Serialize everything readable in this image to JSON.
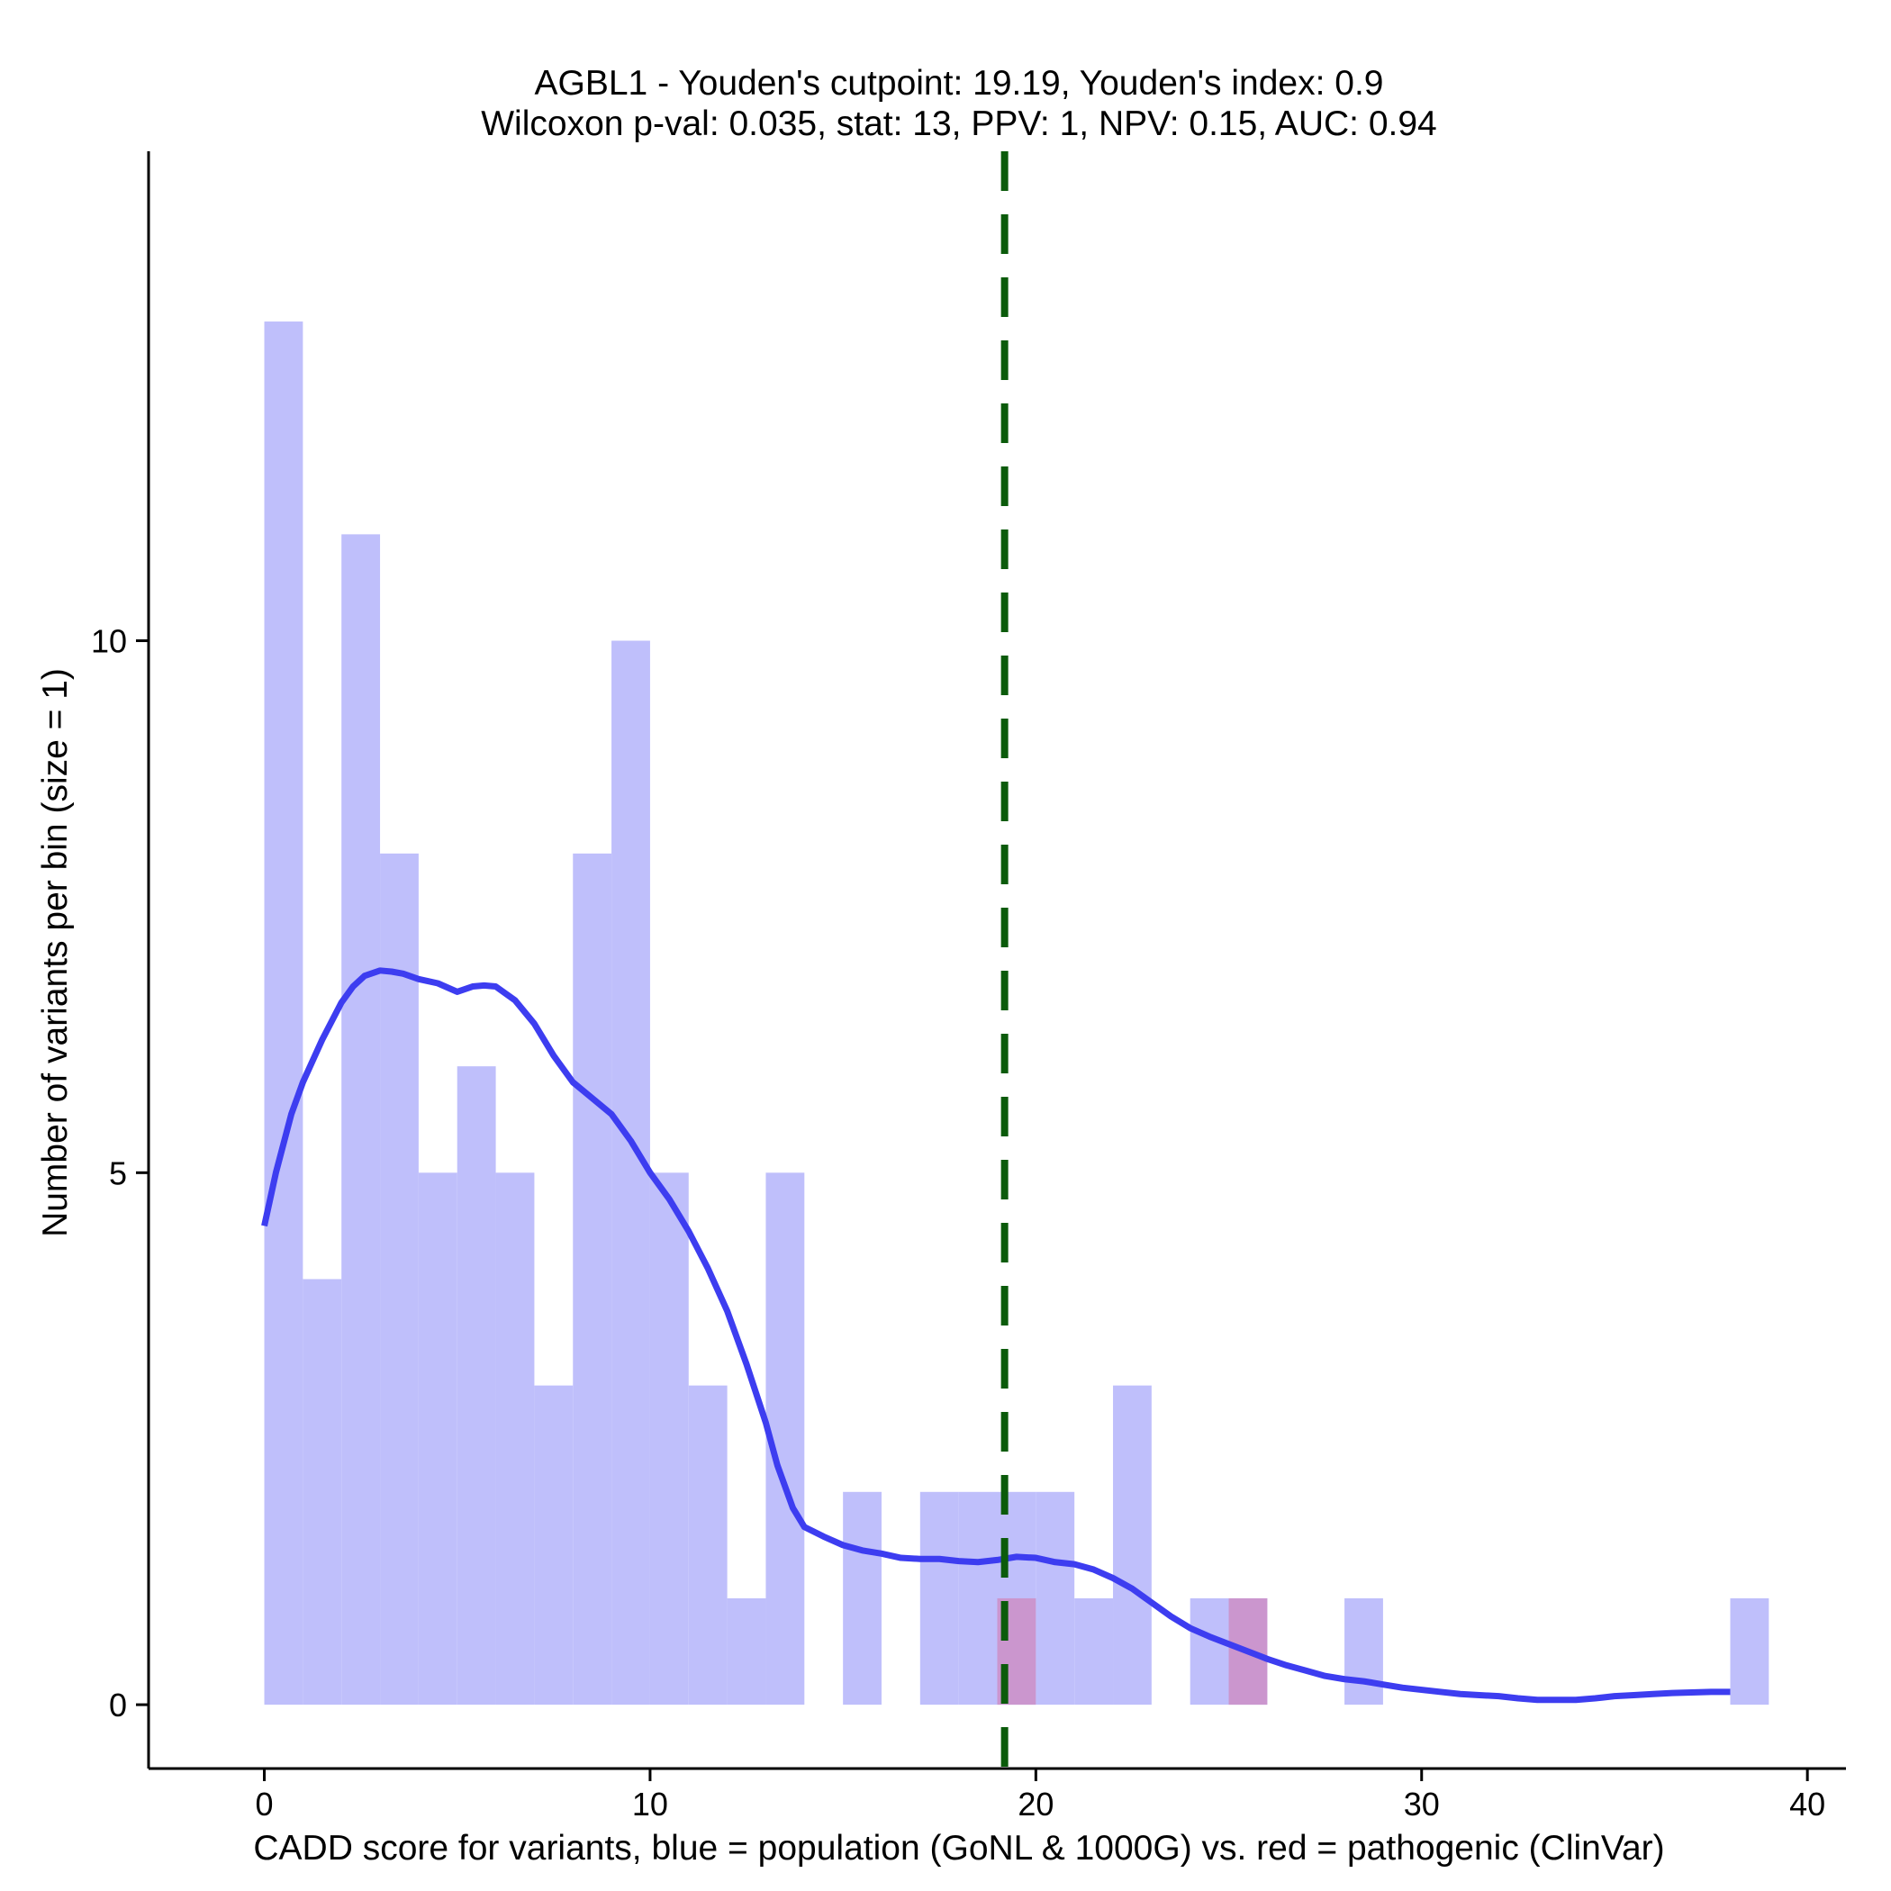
{
  "chart_data": {
    "type": "bar",
    "title_line1": "AGBL1 - Youden's cutpoint: 19.19, Youden's index: 0.9",
    "title_line2": "Wilcoxon p-val: 0.035, stat: 13, PPV: 1, NPV: 0.15, AUC: 0.94",
    "xlabel": "CADD score for variants, blue = population (GoNL & 1000G) vs. red = pathogenic (ClinVar)",
    "ylabel": "Number of variants per bin (size = 1)",
    "xlim": [
      -3,
      41
    ],
    "ylim": [
      -0.6,
      14.6
    ],
    "x_ticks": [
      0,
      10,
      20,
      30,
      40
    ],
    "x_tick_labels": [
      "0",
      "10",
      "20",
      "30",
      "40"
    ],
    "y_ticks": [
      0,
      5,
      10
    ],
    "y_tick_labels": [
      "0",
      "5",
      "10"
    ],
    "bin_width": 1,
    "cutpoint": 19.19,
    "series": [
      {
        "name": "population (GoNL & 1000G)",
        "color": "#bfbffb",
        "bin_starts": [
          0,
          1,
          2,
          3,
          4,
          5,
          6,
          7,
          8,
          9,
          10,
          11,
          12,
          13,
          14,
          15,
          16,
          17,
          18,
          19,
          20,
          21,
          22,
          23,
          24,
          25,
          26,
          27,
          28,
          29,
          30,
          31,
          32,
          33,
          34,
          35,
          36,
          37,
          38
        ],
        "values": [
          13,
          4,
          11,
          8,
          5,
          6,
          5,
          3,
          8,
          10,
          5,
          3,
          1,
          5,
          0,
          2,
          0,
          2,
          2,
          2,
          2,
          1,
          3,
          0,
          1,
          1,
          0,
          0,
          1,
          0,
          0,
          0,
          0,
          0,
          0,
          0,
          0,
          0,
          1
        ]
      },
      {
        "name": "pathogenic (ClinVar)",
        "color": "#cc8ec6",
        "bin_starts": [
          19,
          25
        ],
        "values": [
          1,
          1
        ]
      }
    ],
    "density": {
      "name": "density",
      "color": "#3d3df0",
      "x": [
        0,
        0.3,
        0.7,
        1,
        1.5,
        2,
        2.3,
        2.6,
        3,
        3.3,
        3.6,
        4,
        4.5,
        5,
        5.4,
        5.7,
        6,
        6.5,
        7,
        7.5,
        8,
        8.5,
        9,
        9.5,
        10,
        10.5,
        11,
        11.5,
        12,
        12.5,
        13,
        13.3,
        13.7,
        14,
        14.5,
        15,
        15.5,
        16,
        16.5,
        17,
        17.5,
        18,
        18.5,
        19,
        19.5,
        20,
        20.5,
        21,
        21.5,
        22,
        22.5,
        23,
        23.5,
        24,
        24.5,
        25,
        25.5,
        26,
        26.5,
        27,
        27.5,
        28,
        28.5,
        29,
        29.5,
        30,
        30.5,
        31,
        31.5,
        32,
        32.5,
        33,
        33.5,
        34,
        34.5,
        35,
        35.5,
        36,
        36.5,
        37,
        37.5,
        38
      ],
      "y": [
        4.5,
        5.0,
        5.55,
        5.85,
        6.25,
        6.6,
        6.75,
        6.85,
        6.9,
        6.89,
        6.87,
        6.82,
        6.78,
        6.7,
        6.75,
        6.76,
        6.75,
        6.62,
        6.4,
        6.1,
        5.85,
        5.7,
        5.55,
        5.3,
        5.0,
        4.75,
        4.45,
        4.1,
        3.7,
        3.2,
        2.65,
        2.25,
        1.85,
        1.67,
        1.58,
        1.5,
        1.45,
        1.42,
        1.38,
        1.37,
        1.37,
        1.35,
        1.34,
        1.36,
        1.39,
        1.38,
        1.34,
        1.32,
        1.27,
        1.19,
        1.09,
        0.96,
        0.83,
        0.72,
        0.64,
        0.57,
        0.5,
        0.43,
        0.37,
        0.32,
        0.27,
        0.24,
        0.22,
        0.19,
        0.16,
        0.14,
        0.12,
        0.1,
        0.09,
        0.08,
        0.06,
        0.045,
        0.045,
        0.045,
        0.06,
        0.08,
        0.09,
        0.1,
        0.11,
        0.115,
        0.12,
        0.12
      ]
    }
  }
}
